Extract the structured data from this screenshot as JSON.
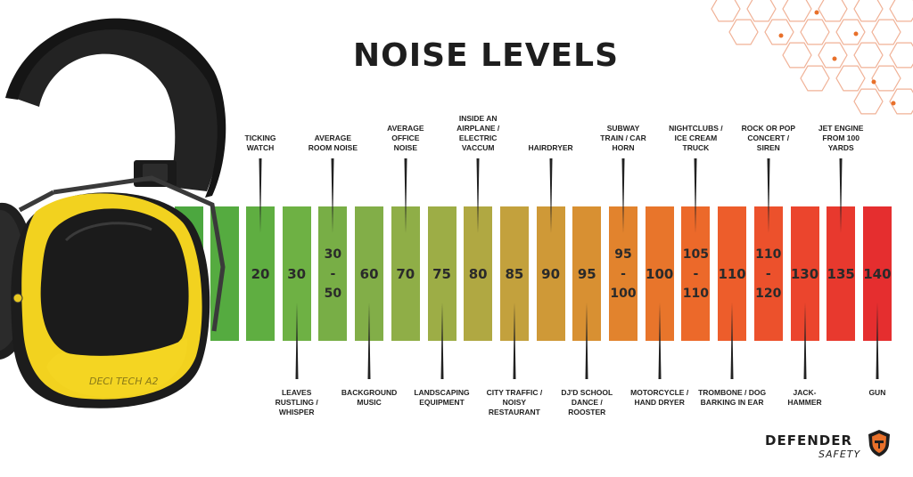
{
  "title": "NOISE LEVELS",
  "scale": [
    {
      "value": "20",
      "label": "TICKING\nWATCH",
      "pos": "top",
      "color": "#5fae41"
    },
    {
      "value": "30",
      "label": "LEAVES\nRUSTLING /\nWHISPER",
      "pos": "bottom",
      "color": "#6eb144"
    },
    {
      "value": "30\n-\n50",
      "label": "AVERAGE\nROOM NOISE",
      "pos": "top",
      "color": "#78ae46"
    },
    {
      "value": "60",
      "label": "BACKGROUND\nMUSIC",
      "pos": "bottom",
      "color": "#82ae48"
    },
    {
      "value": "70",
      "label": "AVERAGE\nOFFICE\nNOISE",
      "pos": "top",
      "color": "#8fae47"
    },
    {
      "value": "75",
      "label": "LANDSCAPING\nEQUIPMENT",
      "pos": "bottom",
      "color": "#9dad46"
    },
    {
      "value": "80",
      "label": "INSIDE AN\nAIRPLANE /\nELECTRIC\nVACCUM",
      "pos": "top",
      "color": "#b0a842"
    },
    {
      "value": "85",
      "label": "CITY TRAFFIC /\nNOISY\nRESTAURANT",
      "pos": "bottom",
      "color": "#c3a13d"
    },
    {
      "value": "90",
      "label": "HAIRDRYER",
      "pos": "top",
      "color": "#cf9937"
    },
    {
      "value": "95",
      "label": "DJ'D SCHOOL\nDANCE /\nROOSTER",
      "pos": "bottom",
      "color": "#d89032"
    },
    {
      "value": "95\n-\n100",
      "label": "SUBWAY\nTRAIN / CAR\nHORN",
      "pos": "top",
      "color": "#e2832d"
    },
    {
      "value": "100",
      "label": "MOTORCYCLE /\nHAND DRYER",
      "pos": "bottom",
      "color": "#e8752b"
    },
    {
      "value": "105\n-\n110",
      "label": "NIGHTCLUBS /\nICE CREAM\nTRUCK",
      "pos": "top",
      "color": "#ec692a"
    },
    {
      "value": "110",
      "label": "TROMBONE / DOG\nBARKING IN EAR",
      "pos": "bottom",
      "color": "#ed5d2b"
    },
    {
      "value": "110\n-\n120",
      "label": "ROCK OR POP\nCONCERT /\nSIREN",
      "pos": "top",
      "color": "#ec512c"
    },
    {
      "value": "130",
      "label": "JACK-\nHAMMER",
      "pos": "bottom",
      "color": "#eb452d"
    },
    {
      "value": "135",
      "label": "JET ENGINE\nFROM 100\nYARDS",
      "pos": "top",
      "color": "#e8392e"
    },
    {
      "value": "140",
      "label": "GUN",
      "pos": "bottom",
      "color": "#e52e2f"
    }
  ],
  "product_label": "DECI TECH A2",
  "brand": {
    "name": "DEFENDER",
    "sub": "SAFETY"
  },
  "colors": {
    "earmuff_yellow": "#f2d21f",
    "earmuff_black": "#1c1c1c",
    "hex_lines": "#f0b196",
    "title": "#1e1e1e"
  }
}
